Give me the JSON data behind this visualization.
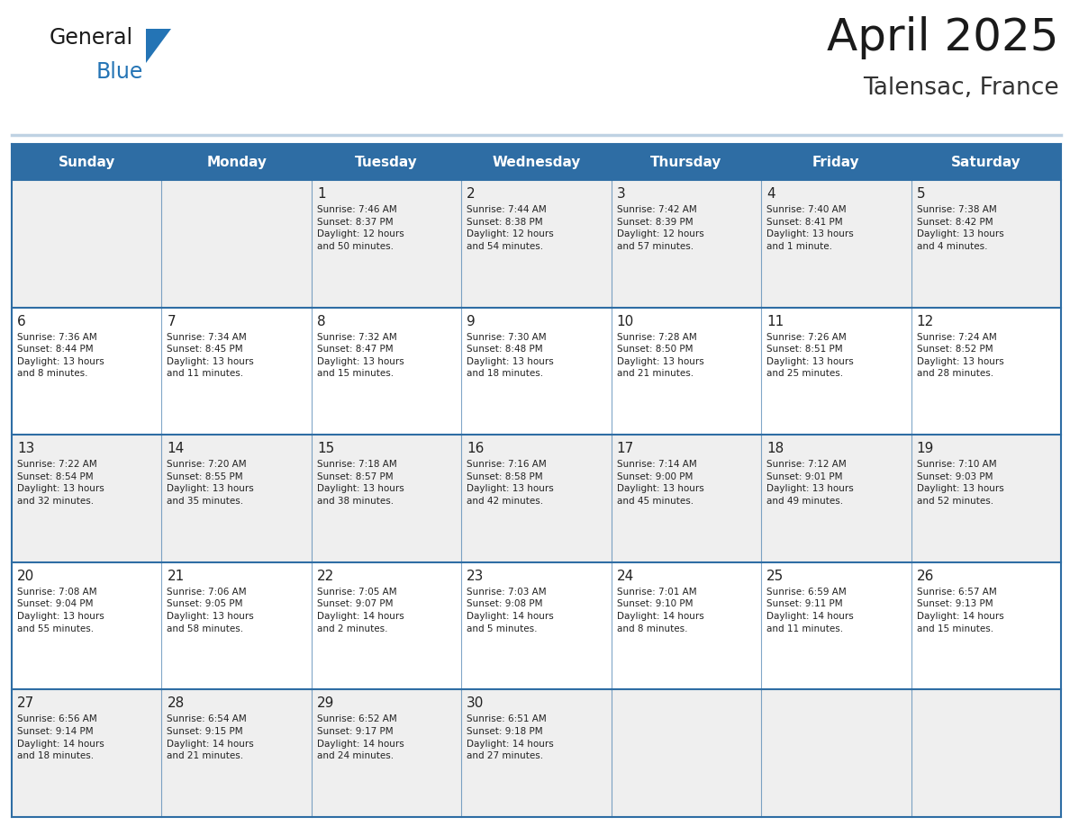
{
  "title": "April 2025",
  "subtitle": "Talensac, France",
  "days_of_week": [
    "Sunday",
    "Monday",
    "Tuesday",
    "Wednesday",
    "Thursday",
    "Friday",
    "Saturday"
  ],
  "header_bg": "#2E6DA4",
  "header_text": "#FFFFFF",
  "row_bg_even": "#EFEFEF",
  "row_bg_odd": "#FFFFFF",
  "cell_border_color": "#2E6DA4",
  "day_number_color": "#222222",
  "text_color": "#222222",
  "title_color": "#1a1a1a",
  "subtitle_color": "#333333",
  "logo_text_color": "#1a1a1a",
  "logo_blue_color": "#2474B5",
  "calendar_data": [
    [
      {
        "day": "",
        "info": ""
      },
      {
        "day": "",
        "info": ""
      },
      {
        "day": "1",
        "info": "Sunrise: 7:46 AM\nSunset: 8:37 PM\nDaylight: 12 hours\nand 50 minutes."
      },
      {
        "day": "2",
        "info": "Sunrise: 7:44 AM\nSunset: 8:38 PM\nDaylight: 12 hours\nand 54 minutes."
      },
      {
        "day": "3",
        "info": "Sunrise: 7:42 AM\nSunset: 8:39 PM\nDaylight: 12 hours\nand 57 minutes."
      },
      {
        "day": "4",
        "info": "Sunrise: 7:40 AM\nSunset: 8:41 PM\nDaylight: 13 hours\nand 1 minute."
      },
      {
        "day": "5",
        "info": "Sunrise: 7:38 AM\nSunset: 8:42 PM\nDaylight: 13 hours\nand 4 minutes."
      }
    ],
    [
      {
        "day": "6",
        "info": "Sunrise: 7:36 AM\nSunset: 8:44 PM\nDaylight: 13 hours\nand 8 minutes."
      },
      {
        "day": "7",
        "info": "Sunrise: 7:34 AM\nSunset: 8:45 PM\nDaylight: 13 hours\nand 11 minutes."
      },
      {
        "day": "8",
        "info": "Sunrise: 7:32 AM\nSunset: 8:47 PM\nDaylight: 13 hours\nand 15 minutes."
      },
      {
        "day": "9",
        "info": "Sunrise: 7:30 AM\nSunset: 8:48 PM\nDaylight: 13 hours\nand 18 minutes."
      },
      {
        "day": "10",
        "info": "Sunrise: 7:28 AM\nSunset: 8:50 PM\nDaylight: 13 hours\nand 21 minutes."
      },
      {
        "day": "11",
        "info": "Sunrise: 7:26 AM\nSunset: 8:51 PM\nDaylight: 13 hours\nand 25 minutes."
      },
      {
        "day": "12",
        "info": "Sunrise: 7:24 AM\nSunset: 8:52 PM\nDaylight: 13 hours\nand 28 minutes."
      }
    ],
    [
      {
        "day": "13",
        "info": "Sunrise: 7:22 AM\nSunset: 8:54 PM\nDaylight: 13 hours\nand 32 minutes."
      },
      {
        "day": "14",
        "info": "Sunrise: 7:20 AM\nSunset: 8:55 PM\nDaylight: 13 hours\nand 35 minutes."
      },
      {
        "day": "15",
        "info": "Sunrise: 7:18 AM\nSunset: 8:57 PM\nDaylight: 13 hours\nand 38 minutes."
      },
      {
        "day": "16",
        "info": "Sunrise: 7:16 AM\nSunset: 8:58 PM\nDaylight: 13 hours\nand 42 minutes."
      },
      {
        "day": "17",
        "info": "Sunrise: 7:14 AM\nSunset: 9:00 PM\nDaylight: 13 hours\nand 45 minutes."
      },
      {
        "day": "18",
        "info": "Sunrise: 7:12 AM\nSunset: 9:01 PM\nDaylight: 13 hours\nand 49 minutes."
      },
      {
        "day": "19",
        "info": "Sunrise: 7:10 AM\nSunset: 9:03 PM\nDaylight: 13 hours\nand 52 minutes."
      }
    ],
    [
      {
        "day": "20",
        "info": "Sunrise: 7:08 AM\nSunset: 9:04 PM\nDaylight: 13 hours\nand 55 minutes."
      },
      {
        "day": "21",
        "info": "Sunrise: 7:06 AM\nSunset: 9:05 PM\nDaylight: 13 hours\nand 58 minutes."
      },
      {
        "day": "22",
        "info": "Sunrise: 7:05 AM\nSunset: 9:07 PM\nDaylight: 14 hours\nand 2 minutes."
      },
      {
        "day": "23",
        "info": "Sunrise: 7:03 AM\nSunset: 9:08 PM\nDaylight: 14 hours\nand 5 minutes."
      },
      {
        "day": "24",
        "info": "Sunrise: 7:01 AM\nSunset: 9:10 PM\nDaylight: 14 hours\nand 8 minutes."
      },
      {
        "day": "25",
        "info": "Sunrise: 6:59 AM\nSunset: 9:11 PM\nDaylight: 14 hours\nand 11 minutes."
      },
      {
        "day": "26",
        "info": "Sunrise: 6:57 AM\nSunset: 9:13 PM\nDaylight: 14 hours\nand 15 minutes."
      }
    ],
    [
      {
        "day": "27",
        "info": "Sunrise: 6:56 AM\nSunset: 9:14 PM\nDaylight: 14 hours\nand 18 minutes."
      },
      {
        "day": "28",
        "info": "Sunrise: 6:54 AM\nSunset: 9:15 PM\nDaylight: 14 hours\nand 21 minutes."
      },
      {
        "day": "29",
        "info": "Sunrise: 6:52 AM\nSunset: 9:17 PM\nDaylight: 14 hours\nand 24 minutes."
      },
      {
        "day": "30",
        "info": "Sunrise: 6:51 AM\nSunset: 9:18 PM\nDaylight: 14 hours\nand 27 minutes."
      },
      {
        "day": "",
        "info": ""
      },
      {
        "day": "",
        "info": ""
      },
      {
        "day": "",
        "info": ""
      }
    ]
  ]
}
